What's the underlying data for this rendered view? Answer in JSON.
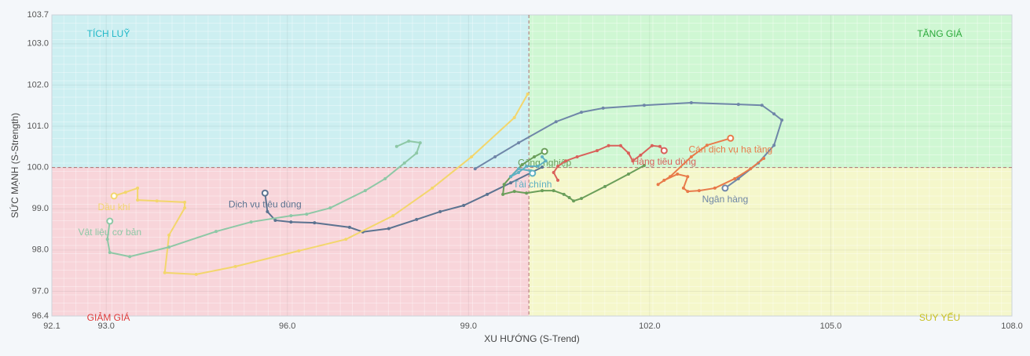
{
  "chart_data": {
    "type": "rrg",
    "xlabel": "XU HƯỚNG (S-Trend)",
    "ylabel": "SỨC MẠNH (S-Strength)",
    "xlim": [
      92.1,
      108.0
    ],
    "ylim": [
      96.4,
      103.7
    ],
    "xticks": [
      92.1,
      {
        "value": 93,
        "label": "93.0"
      },
      {
        "value": 96,
        "label": "96.0"
      },
      {
        "value": 99,
        "label": "99.0"
      },
      {
        "value": 102,
        "label": "102.0"
      },
      {
        "value": 105,
        "label": "105.0"
      },
      {
        "value": 108,
        "label": "108.0"
      }
    ],
    "yticks": [
      96.4,
      {
        "value": 97,
        "label": "97.0"
      },
      {
        "value": 98,
        "label": "98.0"
      },
      {
        "value": 99,
        "label": "99.0"
      },
      {
        "value": 100,
        "label": "100.0"
      },
      {
        "value": 101,
        "label": "101.0"
      },
      {
        "value": 102,
        "label": "102.0"
      },
      {
        "value": 103,
        "label": "103.0"
      },
      103.7
    ],
    "center": {
      "x": 100,
      "y": 100
    },
    "quadrants": [
      {
        "label": "TÍCH LUỸ",
        "fill": "#cdeff1",
        "color": "#22b8c8",
        "corner": "top-left"
      },
      {
        "label": "TĂNG GIÁ",
        "fill": "#cff7d3",
        "color": "#2aa83a",
        "corner": "top-right"
      },
      {
        "label": "GIẢM GIÁ",
        "fill": "#f8d5da",
        "color": "#e03838",
        "corner": "bottom-left"
      },
      {
        "label": "SUY YẾU",
        "fill": "#f5f7cb",
        "color": "#c8c020",
        "corner": "bottom-right"
      }
    ],
    "series": [
      {
        "name": "Ngân hàng",
        "color": "#6f86a8",
        "x": [
          99.11,
          99.44,
          99.83,
          100.45,
          100.87,
          101.23,
          101.91,
          102.69,
          103.47,
          103.86,
          104.06,
          104.19,
          104.06,
          103.8,
          103.47,
          103.25
        ],
        "values": [
          99.97,
          100.26,
          100.6,
          101.11,
          101.34,
          101.44,
          101.51,
          101.57,
          101.53,
          101.51,
          101.3,
          101.15,
          100.54,
          100.11,
          99.73,
          99.5
        ]
      },
      {
        "name": "Dịch vụ tiêu dùng",
        "color": "#5b7390",
        "x": [
          100.22,
          99.7,
          99.31,
          98.92,
          98.53,
          98.14,
          97.68,
          97.25,
          97.03,
          96.45,
          96.06,
          95.8,
          95.67,
          95.63
        ],
        "values": [
          100.01,
          99.63,
          99.35,
          99.08,
          98.93,
          98.74,
          98.52,
          98.44,
          98.55,
          98.66,
          98.68,
          98.72,
          98.93,
          99.38
        ]
      },
      {
        "name": "Dầu khí",
        "color": "#f3d66c",
        "x": [
          99.98,
          99.76,
          99.05,
          98.4,
          97.75,
          96.97,
          96.19,
          95.14,
          94.49,
          93.97,
          94.04,
          94.3,
          94.3,
          93.84,
          93.52,
          93.52,
          93.32,
          93.13
        ],
        "values": [
          101.78,
          101.21,
          100.26,
          99.5,
          98.83,
          98.26,
          97.98,
          97.6,
          97.41,
          97.45,
          98.36,
          99.02,
          99.16,
          99.19,
          99.21,
          99.5,
          99.4,
          99.31
        ]
      },
      {
        "name": "Vật liệu cơ bản",
        "color": "#8ec8a6",
        "x": [
          97.81,
          98.01,
          98.2,
          98.14,
          97.94,
          97.62,
          97.29,
          96.71,
          96.32,
          96.06,
          95.4,
          94.82,
          94.04,
          93.39,
          93.06,
          93.02,
          93.06
        ],
        "values": [
          100.51,
          100.64,
          100.6,
          100.35,
          100.11,
          99.73,
          99.44,
          99.02,
          98.87,
          98.83,
          98.68,
          98.45,
          98.07,
          97.84,
          97.94,
          98.26,
          98.7
        ]
      },
      {
        "name": "Công nghiệp",
        "color": "#6a9e5a",
        "x": [
          101.91,
          101.65,
          101.26,
          100.87,
          100.74,
          100.67,
          100.58,
          100.41,
          100.22,
          99.96,
          99.76,
          99.57,
          99.59,
          99.7,
          99.89,
          100.09,
          100.26
        ],
        "values": [
          100.05,
          99.84,
          99.54,
          99.25,
          99.19,
          99.27,
          99.35,
          99.44,
          99.44,
          99.38,
          99.42,
          99.35,
          99.59,
          99.78,
          100.07,
          100.26,
          100.39
        ]
      },
      {
        "name": "Tài chính",
        "color": "#5fb0c2",
        "x": [
          100.22,
          100.28,
          100.15,
          99.96,
          99.83,
          99.7,
          99.83,
          100.03,
          100.06
        ],
        "values": [
          100.26,
          100.16,
          100.03,
          100.03,
          99.88,
          99.78,
          99.97,
          99.92,
          99.86
        ]
      },
      {
        "name": "Hàng tiêu dùng",
        "color": "#d9605a",
        "x": [
          100.48,
          100.41,
          100.48,
          100.61,
          100.8,
          101.13,
          101.32,
          101.52,
          101.65,
          101.72,
          101.85,
          102.04,
          102.17,
          102.24
        ],
        "values": [
          99.69,
          99.88,
          100.03,
          100.16,
          100.26,
          100.41,
          100.53,
          100.53,
          100.35,
          100.16,
          100.3,
          100.53,
          100.51,
          100.41
        ]
      },
      {
        "name": "Cán dịch vụ hạ tầng",
        "color": "#e87a4a",
        "x": [
          103.89,
          103.67,
          103.41,
          103.08,
          102.82,
          102.63,
          102.56,
          102.63,
          102.46,
          102.24,
          102.14,
          102.34,
          102.69,
          102.95,
          103.34
        ],
        "values": [
          100.22,
          99.97,
          99.73,
          99.5,
          99.44,
          99.42,
          99.5,
          99.78,
          99.84,
          99.69,
          99.59,
          99.78,
          100.26,
          100.54,
          100.71
        ]
      }
    ]
  }
}
